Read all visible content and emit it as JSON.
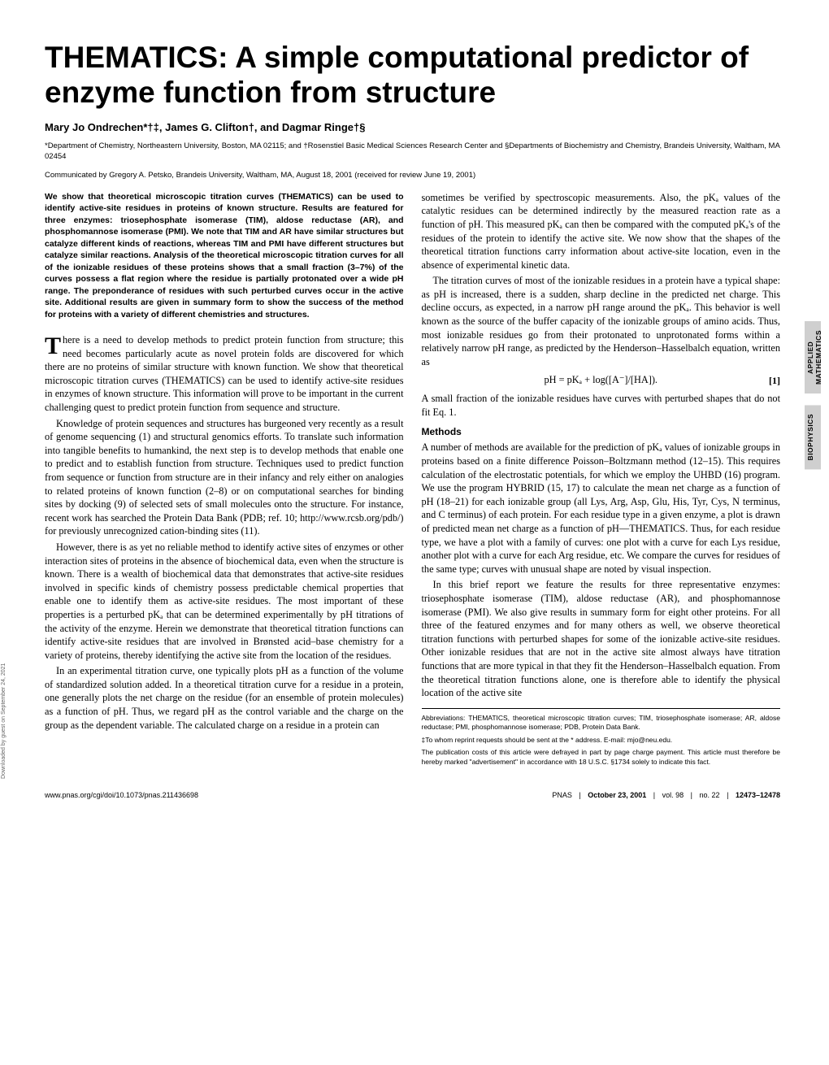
{
  "title": "THEMATICS: A simple computational predictor of enzyme function from structure",
  "authors": "Mary Jo Ondrechen*†‡, James G. Clifton†, and Dagmar Ringe†§",
  "affiliations": "*Department of Chemistry, Northeastern University, Boston, MA 02115; and †Rosenstiel Basic Medical Sciences Research Center and §Departments of Biochemistry and Chemistry, Brandeis University, Waltham, MA 02454",
  "communicated": "Communicated by Gregory A. Petsko, Brandeis University, Waltham, MA, August 18, 2001 (received for review June 19, 2001)",
  "abstract": "We show that theoretical microscopic titration curves (THEMATICS) can be used to identify active-site residues in proteins of known structure. Results are featured for three enzymes: triosephosphate isomerase (TIM), aldose reductase (AR), and phosphomannose isomerase (PMI). We note that TIM and AR have similar structures but catalyze different kinds of reactions, whereas TIM and PMI have different structures but catalyze similar reactions. Analysis of the theoretical microscopic titration curves for all of the ionizable residues of these proteins shows that a small fraction (3–7%) of the curves possess a flat region where the residue is partially protonated over a wide pH range. The preponderance of residues with such perturbed curves occur in the active site. Additional results are given in summary form to show the success of the method for proteins with a variety of different chemistries and structures.",
  "left": {
    "p1_first": "here is a need to develop methods to predict protein function from structure; this need becomes particularly acute as novel protein folds are discovered for which there are no proteins of similar structure with known function. We show that theoretical microscopic titration curves (THEMATICS) can be used to identify active-site residues in enzymes of known structure. This information will prove to be important in the current challenging quest to predict protein function from sequence and structure.",
    "p2": "Knowledge of protein sequences and structures has burgeoned very recently as a result of genome sequencing (1) and structural genomics efforts. To translate such information into tangible benefits to humankind, the next step is to develop methods that enable one to predict and to establish function from structure. Techniques used to predict function from sequence or function from structure are in their infancy and rely either on analogies to related proteins of known function (2–8) or on computational searches for binding sites by docking (9) of selected sets of small molecules onto the structure. For instance, recent work has searched the Protein Data Bank (PDB; ref. 10; http://www.rcsb.org/pdb/) for previously unrecognized cation-binding sites (11).",
    "p3": "However, there is as yet no reliable method to identify active sites of enzymes or other interaction sites of proteins in the absence of biochemical data, even when the structure is known. There is a wealth of biochemical data that demonstrates that active-site residues involved in specific kinds of chemistry possess predictable chemical properties that enable one to identify them as active-site residues. The most important of these properties is a perturbed pKₐ that can be determined experimentally by pH titrations of the activity of the enzyme. Herein we demonstrate that theoretical titration functions can identify active-site residues that are involved in Brønsted acid–base chemistry for a variety of proteins, thereby identifying the active site from the location of the residues.",
    "p4": "In an experimental titration curve, one typically plots pH as a function of the volume of standardized solution added. In a theoretical titration curve for a residue in a protein, one generally plots the net charge on the residue (for an ensemble of protein molecules) as a function of pH. Thus, we regard pH as the control variable and the charge on the group as the dependent variable. The calculated charge on a residue in a protein can"
  },
  "right": {
    "p1": "sometimes be verified by spectroscopic measurements. Also, the pKₐ values of the catalytic residues can be determined indirectly by the measured reaction rate as a function of pH. This measured pKₐ can then be compared with the computed pKₐ's of the residues of the protein to identify the active site. We now show that the shapes of the theoretical titration functions carry information about active-site location, even in the absence of experimental kinetic data.",
    "p2": "The titration curves of most of the ionizable residues in a protein have a typical shape: as pH is increased, there is a sudden, sharp decline in the predicted net charge. This decline occurs, as expected, in a narrow pH range around the pKₐ. This behavior is well known as the source of the buffer capacity of the ionizable groups of amino acids. Thus, most ionizable residues go from their protonated to unprotonated forms within a relatively narrow pH range, as predicted by the Henderson–Hasselbalch equation, written as",
    "eq": "pH = pKₐ + log([A⁻]/[HA]).",
    "eq_num": "[1]",
    "p3": "A small fraction of the ionizable residues have curves with perturbed shapes that do not fit Eq. 1.",
    "methods_head": "Methods",
    "p4": "A number of methods are available for the prediction of pKₐ values of ionizable groups in proteins based on a finite difference Poisson–Boltzmann method (12–15). This requires calculation of the electrostatic potentials, for which we employ the UHBD (16) program. We use the program HYBRID (15, 17) to calculate the mean net charge as a function of pH (18–21) for each ionizable group (all Lys, Arg, Asp, Glu, His, Tyr, Cys, N terminus, and C terminus) of each protein. For each residue type in a given enzyme, a plot is drawn of predicted mean net charge as a function of pH—THEMATICS. Thus, for each residue type, we have a plot with a family of curves: one plot with a curve for each Lys residue, another plot with a curve for each Arg residue, etc. We compare the curves for residues of the same type; curves with unusual shape are noted by visual inspection.",
    "p5": "In this brief report we feature the results for three representative enzymes: triosephosphate isomerase (TIM), aldose reductase (AR), and phosphomannose isomerase (PMI). We also give results in summary form for eight other proteins. For all three of the featured enzymes and for many others as well, we observe theoretical titration functions with perturbed shapes for some of the ionizable active-site residues. Other ionizable residues that are not in the active site almost always have titration functions that are more typical in that they fit the Henderson–Hasselbalch equation. From the theoretical titration functions alone, one is therefore able to identify the physical location of the active site"
  },
  "footnotes": {
    "f1": "Abbreviations: THEMATICS, theoretical microscopic titration curves; TIM, triosephosphate isomerase; AR, aldose reductase; PMI, phosphomannose isomerase; PDB, Protein Data Bank.",
    "f2": "‡To whom reprint requests should be sent at the * address. E-mail: mjo@neu.edu.",
    "f3": "The publication costs of this article were defrayed in part by page charge payment. This article must therefore be hereby marked \"advertisement\" in accordance with 18 U.S.C. §1734 solely to indicate this fact."
  },
  "footer": {
    "left": "www.pnas.org/cgi/doi/10.1073/pnas.211436698",
    "pnas": "PNAS",
    "date": "October 23, 2001",
    "vol": "vol. 98",
    "no": "no. 22",
    "pages": "12473–12478"
  },
  "sidetabs": {
    "tab1a": "APPLIED",
    "tab1b": "MATHEMATICS",
    "tab2": "BIOPHYSICS"
  },
  "margin_note": "Downloaded by guest on September 24, 2021"
}
